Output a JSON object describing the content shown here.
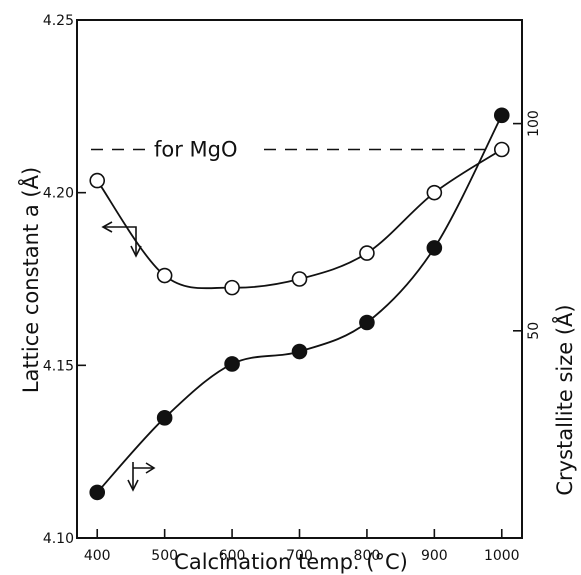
{
  "chart_data": {
    "type": "line",
    "xlabel": "Calcination temp. (°C)",
    "x": [
      400,
      500,
      600,
      700,
      800,
      900,
      1000
    ],
    "xlim": [
      370,
      1030
    ],
    "xticks": [
      "400",
      "500",
      "600",
      "700",
      "800",
      "900",
      "1000"
    ],
    "y_left": {
      "label": "Lattice constant a (Å)",
      "lim": [
        4.1,
        4.25
      ],
      "ticks": [
        "4.10",
        "4.15",
        "4.20",
        "4.25"
      ]
    },
    "y_right": {
      "label": "Crystallite size (Å)",
      "lim": [
        0,
        125
      ],
      "ticks": [
        "50",
        "100"
      ]
    },
    "series": [
      {
        "marker": "open-circle",
        "axis": "left",
        "values": [
          4.2035,
          4.176,
          4.1725,
          4.175,
          4.1825,
          4.2,
          4.2125
        ]
      },
      {
        "marker": "filled-circle",
        "axis": "right",
        "values": [
          11,
          29,
          42,
          45,
          52,
          70,
          102
        ]
      }
    ],
    "reference_line": {
      "label": "for MgO",
      "axis": "left",
      "value": 4.2125,
      "style": "dashed"
    },
    "grid": false,
    "legend": "none"
  }
}
